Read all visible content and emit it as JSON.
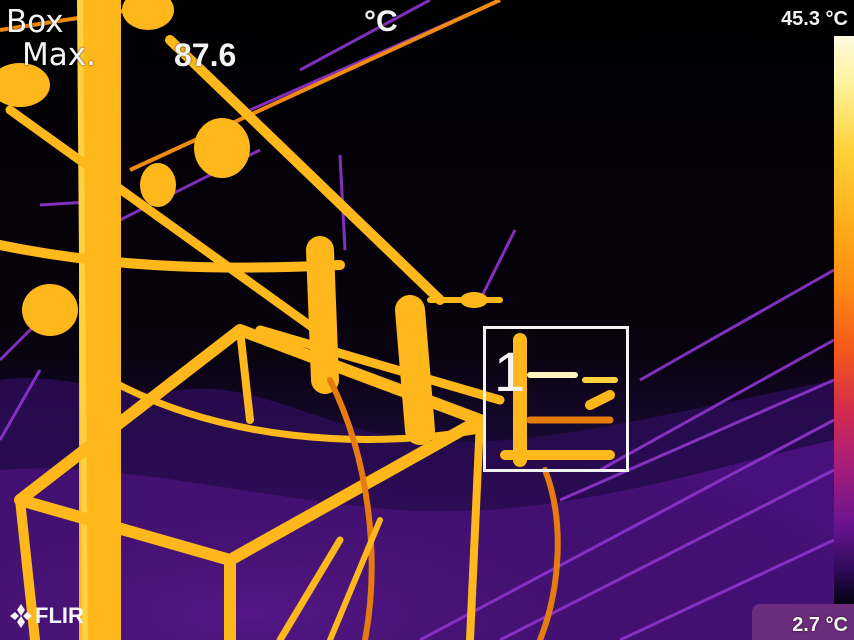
{
  "overlay": {
    "measurement_mode": "Box",
    "measurement_label": "Max.",
    "measurement_value": "87.6",
    "unit": "°C",
    "box_number": "1"
  },
  "scale": {
    "max": "45.3 °C",
    "min": "2.7 °C",
    "palette": "iron",
    "colors": [
      "#fffbe0",
      "#ffd23a",
      "#ff8c12",
      "#d42b4e",
      "#6a148f",
      "#05020f"
    ]
  },
  "brand": {
    "logo_text": "FLIR",
    "logo_icon": "flir-logo-icon"
  }
}
